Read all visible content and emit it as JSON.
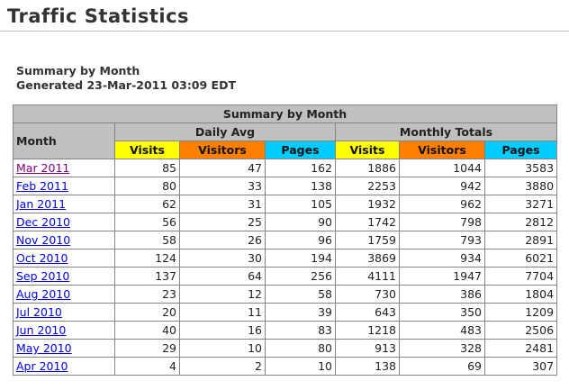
{
  "colors": {
    "header_bg": "#C0C0C0",
    "visits_bg": "#FFFF00",
    "visitors_bg": "#FF8000",
    "pages_bg": "#00CCFF",
    "link": "#0000EE",
    "visited_link": "#800080"
  },
  "page": {
    "title": "Traffic Statistics",
    "summary_label": "Summary by Month",
    "generated_label": "Generated 23-Mar-2011 03:09 EDT"
  },
  "table": {
    "caption": "Summary by Month",
    "columns": {
      "month": "Month",
      "group_daily": "Daily Avg",
      "group_monthly": "Monthly Totals",
      "visits": "Visits",
      "visitors": "Visitors",
      "pages": "Pages"
    },
    "rows": [
      {
        "month": "Mar 2011",
        "visited": true,
        "daily_visits": 85,
        "daily_visitors": 47,
        "daily_pages": 162,
        "monthly_visits": 1886,
        "monthly_visitors": 1044,
        "monthly_pages": 3583
      },
      {
        "month": "Feb 2011",
        "visited": false,
        "daily_visits": 80,
        "daily_visitors": 33,
        "daily_pages": 138,
        "monthly_visits": 2253,
        "monthly_visitors": 942,
        "monthly_pages": 3880
      },
      {
        "month": "Jan 2011",
        "visited": false,
        "daily_visits": 62,
        "daily_visitors": 31,
        "daily_pages": 105,
        "monthly_visits": 1932,
        "monthly_visitors": 962,
        "monthly_pages": 3271
      },
      {
        "month": "Dec 2010",
        "visited": false,
        "daily_visits": 56,
        "daily_visitors": 25,
        "daily_pages": 90,
        "monthly_visits": 1742,
        "monthly_visitors": 798,
        "monthly_pages": 2812
      },
      {
        "month": "Nov 2010",
        "visited": false,
        "daily_visits": 58,
        "daily_visitors": 26,
        "daily_pages": 96,
        "monthly_visits": 1759,
        "monthly_visitors": 793,
        "monthly_pages": 2891
      },
      {
        "month": "Oct 2010",
        "visited": false,
        "daily_visits": 124,
        "daily_visitors": 30,
        "daily_pages": 194,
        "monthly_visits": 3869,
        "monthly_visitors": 934,
        "monthly_pages": 6021
      },
      {
        "month": "Sep 2010",
        "visited": false,
        "daily_visits": 137,
        "daily_visitors": 64,
        "daily_pages": 256,
        "monthly_visits": 4111,
        "monthly_visitors": 1947,
        "monthly_pages": 7704
      },
      {
        "month": "Aug 2010",
        "visited": false,
        "daily_visits": 23,
        "daily_visitors": 12,
        "daily_pages": 58,
        "monthly_visits": 730,
        "monthly_visitors": 386,
        "monthly_pages": 1804
      },
      {
        "month": "Jul 2010",
        "visited": false,
        "daily_visits": 20,
        "daily_visitors": 11,
        "daily_pages": 39,
        "monthly_visits": 643,
        "monthly_visitors": 350,
        "monthly_pages": 1209
      },
      {
        "month": "Jun 2010",
        "visited": false,
        "daily_visits": 40,
        "daily_visitors": 16,
        "daily_pages": 83,
        "monthly_visits": 1218,
        "monthly_visitors": 483,
        "monthly_pages": 2506
      },
      {
        "month": "May 2010",
        "visited": false,
        "daily_visits": 29,
        "daily_visitors": 10,
        "daily_pages": 80,
        "monthly_visits": 913,
        "monthly_visitors": 328,
        "monthly_pages": 2481
      },
      {
        "month": "Apr 2010",
        "visited": false,
        "daily_visits": 4,
        "daily_visitors": 2,
        "daily_pages": 10,
        "monthly_visits": 138,
        "monthly_visitors": 69,
        "monthly_pages": 307
      }
    ]
  }
}
